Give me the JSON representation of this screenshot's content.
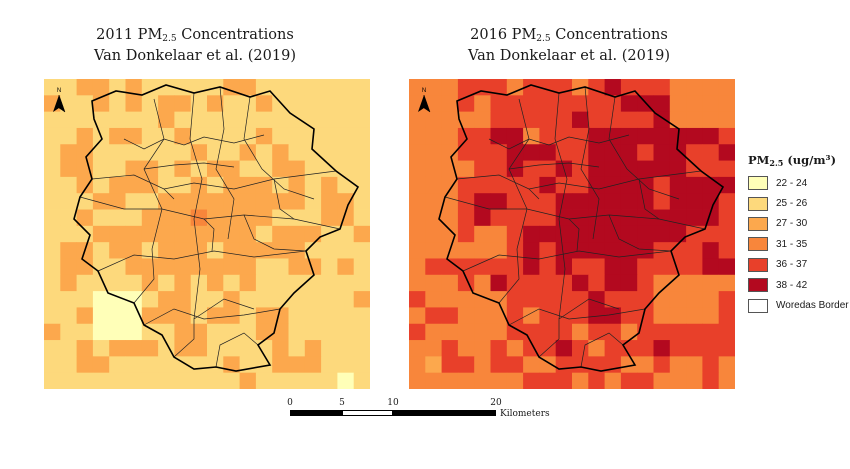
{
  "titles": {
    "left": {
      "prefix": "2011 PM",
      "sub": "2.5",
      "suffix": " Concentrations",
      "line2": "Van Donkelaar et al. (2019)"
    },
    "right": {
      "prefix": "2016 PM",
      "sub": "2.5",
      "suffix": " Concentrations",
      "line2": "Van Donkelaar et al. (2019)"
    }
  },
  "north_arrow_label": "N",
  "legend": {
    "title_prefix": "PM",
    "title_sub": "2.5",
    "title_suffix": " (ug/m³)",
    "items": [
      {
        "label": "22 - 24",
        "color": "#ffffb8"
      },
      {
        "label": "25 - 26",
        "color": "#fdd97c"
      },
      {
        "label": "27 - 30",
        "color": "#fca84d"
      },
      {
        "label": "31 - 35",
        "color": "#f8863b"
      },
      {
        "label": "36 - 37",
        "color": "#e8402a"
      },
      {
        "label": "38 - 42",
        "color": "#b3091f"
      },
      {
        "label": "Woredas Border",
        "color": "#ffffff"
      }
    ]
  },
  "scalebar": {
    "ticks": [
      "0",
      "5",
      "10",
      "20"
    ],
    "unit": "Kilometers"
  },
  "maps": {
    "left_level_estimate": "mostly 25-30 with lighter 22-24 patches",
    "right_level_estimate": "mostly 31-42"
  }
}
